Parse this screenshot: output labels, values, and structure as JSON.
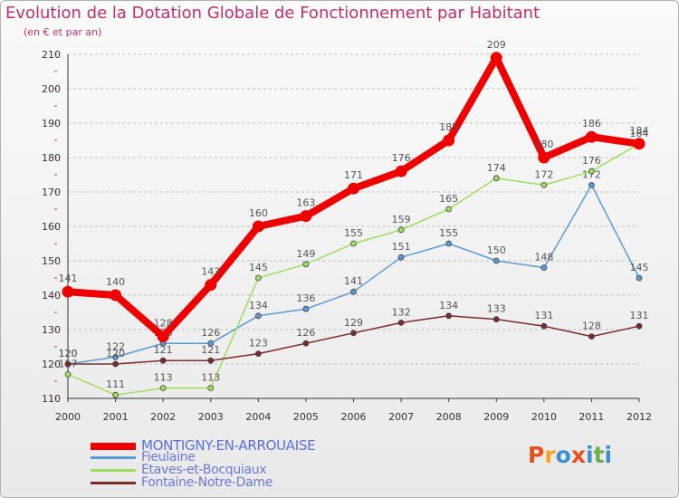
{
  "header": {
    "title": "Evolution de la Dotation Globale de Fonctionnement par Habitant",
    "subtitle": "(en € et par an)"
  },
  "brand": {
    "name": "Proxiti",
    "colors": [
      "#e8501a",
      "#f4a41c",
      "#3a8fd0",
      "#e8501a",
      "#3a8fd0",
      "#6ab04c",
      "#3a8fd0"
    ]
  },
  "chart_data": {
    "type": "line",
    "title": "Evolution de la Dotation Globale de Fonctionnement par Habitant",
    "subtitle": "(en € et par an)",
    "xlabel": "",
    "ylabel": "",
    "ylim": [
      110,
      210
    ],
    "yticks": [
      110,
      120,
      130,
      140,
      150,
      160,
      170,
      180,
      190,
      200,
      210
    ],
    "x": [
      "2000",
      "2001",
      "2002",
      "2003",
      "2004",
      "2005",
      "2006",
      "2007",
      "2008",
      "2009",
      "2010",
      "2011",
      "2012"
    ],
    "grid": "horizontal dashed",
    "legend_position": "bottom-left",
    "series": [
      {
        "name": "MONTIGNY-EN-ARROUAISE",
        "color": "#ee0000",
        "highlight": true,
        "values": [
          141,
          140,
          128,
          143,
          160,
          163,
          171,
          176,
          185,
          209,
          180,
          186,
          184
        ]
      },
      {
        "name": "Fieulaine",
        "color": "#5b9bd5",
        "highlight": false,
        "values": [
          120,
          122,
          126,
          126,
          134,
          136,
          141,
          151,
          155,
          150,
          148,
          172,
          145
        ]
      },
      {
        "name": "Etaves-et-Bocquiaux",
        "color": "#9dde5e",
        "highlight": false,
        "values": [
          117,
          111,
          113,
          113,
          145,
          149,
          155,
          159,
          165,
          174,
          172,
          176,
          184
        ]
      },
      {
        "name": "Fontaine-Notre-Dame",
        "color": "#7a2a2a",
        "highlight": false,
        "values": [
          120,
          120,
          121,
          121,
          123,
          126,
          129,
          132,
          134,
          133,
          131,
          128,
          131
        ]
      }
    ]
  }
}
